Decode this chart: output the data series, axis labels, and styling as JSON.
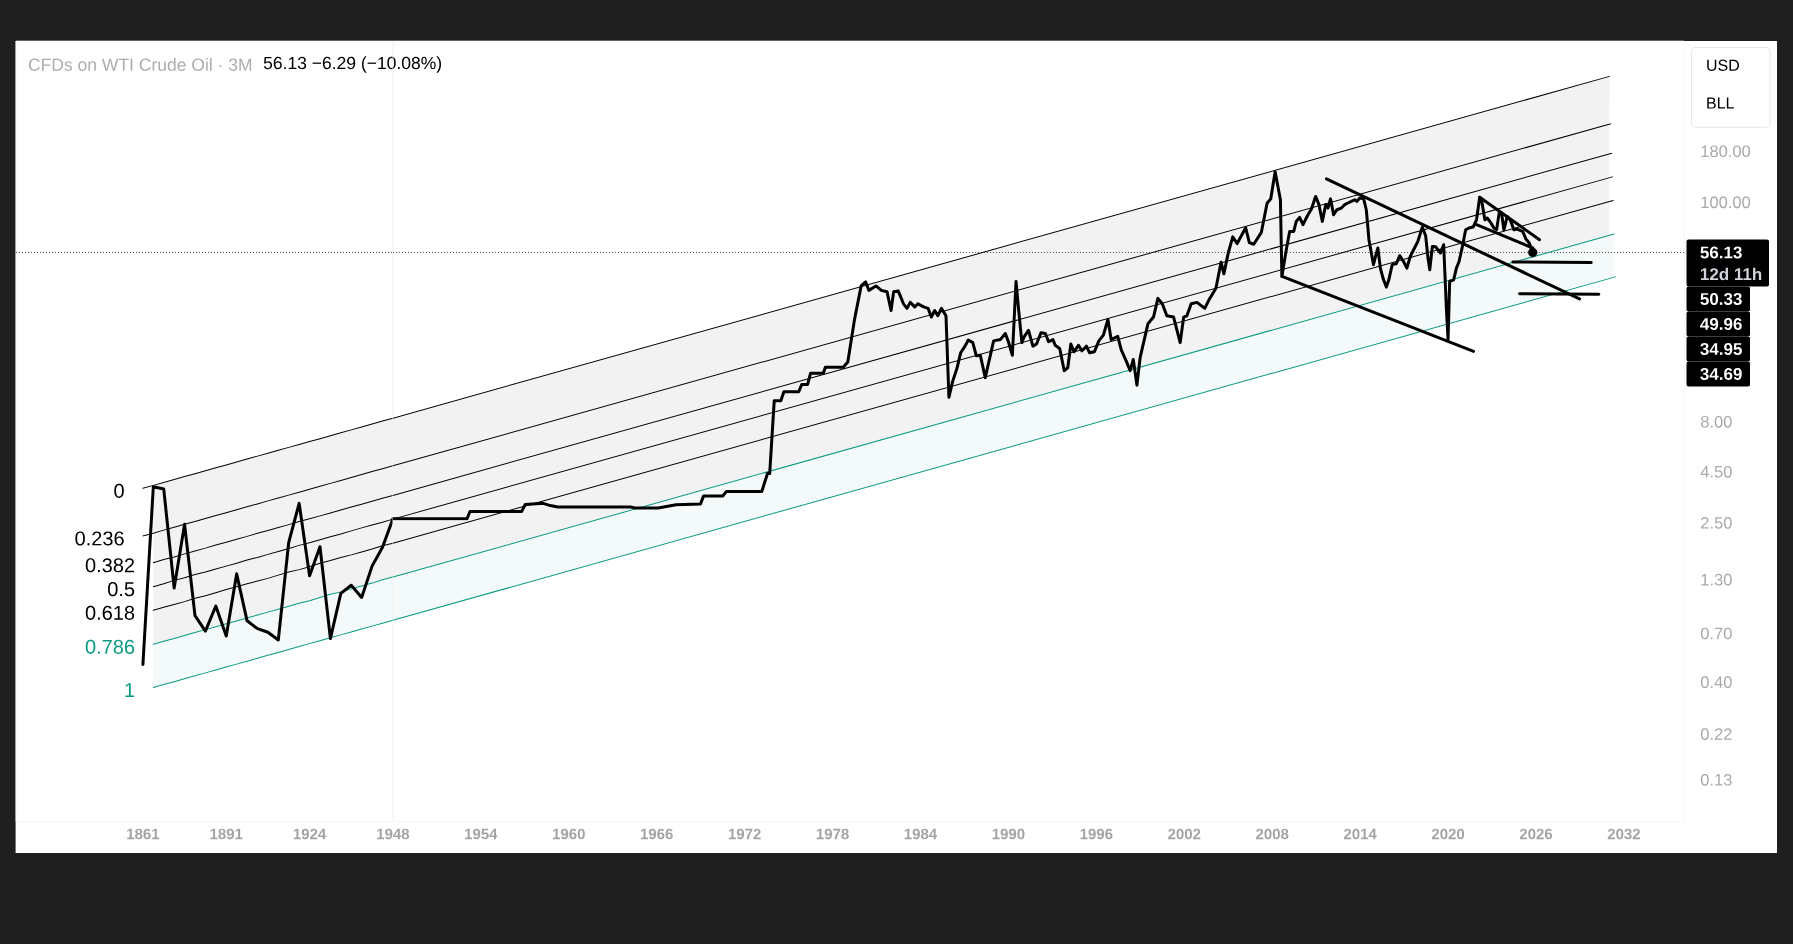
{
  "chart_data": [
    {
      "type": "line",
      "title": "CFDs on WTI Crude Oil · 3M",
      "subtitle": "56.13 −6.29 (−10.08%)",
      "log": true,
      "tick_labels": "x",
      "categories": [
        "1861",
        null,
        null,
        null,
        null,
        null,
        null,
        null,
        "1891",
        null,
        null,
        null,
        null,
        null,
        null,
        null,
        "1924",
        null,
        null,
        null,
        null,
        null,
        null,
        null,
        "1948"
      ],
      "ylim": [
        0.08,
        640
      ],
      "ref_lines": [
        {
          "axis": "y",
          "value": 56.13,
          "line_style": "dotted",
          "color": "#4d4d4d"
        }
      ],
      "series": [
        {
          "name": "0",
          "color": "#000000",
          "values": [
            3.72,
            3.85,
            3.98,
            4.12,
            4.26,
            4.4,
            4.55,
            4.71,
            4.87,
            5.04,
            5.21,
            5.39,
            5.57,
            5.76,
            5.96,
            6.16,
            6.37,
            6.59,
            6.82,
            7.05,
            7.29,
            7.54,
            7.8,
            8.07,
            8.34
          ],
          "upper": [
            null,
            3.85,
            3.98,
            4.12,
            4.26,
            4.4,
            4.55,
            4.71,
            4.87,
            5.04,
            5.21,
            5.39,
            5.57,
            5.76,
            5.96,
            6.16,
            6.37,
            6.59,
            6.82,
            7.05,
            7.29,
            7.54,
            7.8,
            8.07,
            8.34
          ],
          "lower": [
            null,
            0.618,
            0.64,
            0.661,
            0.684,
            0.708,
            0.732,
            0.757,
            0.783,
            0.809,
            0.837,
            0.866,
            0.895,
            0.926,
            0.958,
            0.991,
            1.02,
            1.06,
            1.1,
            1.13,
            1.17,
            1.21,
            1.25,
            1.3,
            1.34
          ]
        },
        {
          "name": "0.236",
          "color": "#000000",
          "values": [
            2.15,
            2.22,
            2.3,
            2.38,
            2.46,
            2.54,
            2.63,
            2.72,
            2.81,
            2.91,
            3.01,
            3.11,
            3.22,
            3.33,
            3.44,
            3.56,
            3.68,
            3.81,
            3.94,
            4.07,
            4.21,
            4.36,
            4.51,
            4.66,
            4.82
          ]
        },
        {
          "name": "0.382",
          "color": "#000000",
          "values": [
            null,
            1.58,
            1.64,
            1.69,
            1.75,
            1.81,
            1.87,
            1.94,
            2.0,
            2.07,
            2.14,
            2.22,
            2.29,
            2.37,
            2.45,
            2.54,
            2.62,
            2.71,
            2.8,
            2.9,
            3.0,
            3.1,
            3.21,
            3.32,
            3.43
          ]
        },
        {
          "name": "0.5",
          "color": "#000000",
          "values": [
            null,
            1.2,
            1.24,
            1.29,
            1.33,
            1.38,
            1.42,
            1.47,
            1.52,
            1.57,
            1.63,
            1.68,
            1.74,
            1.8,
            1.86,
            1.93,
            1.99,
            2.06,
            2.13,
            2.2,
            2.28,
            2.36,
            2.44,
            2.52,
            2.61
          ]
        },
        {
          "name": "0.618",
          "color": "#000000",
          "values": [
            null,
            0.914,
            0.946,
            0.978,
            1.01,
            1.05,
            1.08,
            1.12,
            1.16,
            1.2,
            1.24,
            1.28,
            1.32,
            1.37,
            1.42,
            1.46,
            1.51,
            1.57,
            1.62,
            1.68,
            1.73,
            1.79,
            1.85,
            1.92,
            1.98
          ]
        },
        {
          "name": "0.786",
          "color": "#089981",
          "values": [
            null,
            0.618,
            0.64,
            0.661,
            0.684,
            0.708,
            0.732,
            0.757,
            0.783,
            0.809,
            0.837,
            0.866,
            0.895,
            0.926,
            0.958,
            0.991,
            1.02,
            1.06,
            1.1,
            1.13,
            1.17,
            1.21,
            1.25,
            1.3,
            1.34
          ],
          "upper": [
            null,
            0.618,
            0.64,
            0.661,
            0.684,
            0.708,
            0.732,
            0.757,
            0.783,
            0.809,
            0.837,
            0.866,
            0.895,
            0.926,
            0.958,
            0.991,
            1.02,
            1.06,
            1.1,
            1.13,
            1.17,
            1.21,
            1.25,
            1.3,
            1.34
          ],
          "lower": [
            null,
            0.376,
            0.389,
            0.402,
            0.416,
            0.43,
            0.445,
            0.46,
            0.476,
            0.492,
            0.509,
            0.526,
            0.545,
            0.563,
            0.582,
            0.602,
            0.623,
            0.644,
            0.666,
            0.689,
            0.713,
            0.737,
            0.762,
            0.788,
            0.815
          ]
        },
        {
          "name": "1",
          "color": "#089981",
          "values": [
            null,
            0.376,
            0.389,
            0.402,
            0.416,
            0.43,
            0.445,
            0.46,
            0.476,
            0.492,
            0.509,
            0.526,
            0.545,
            0.563,
            0.582,
            0.602,
            0.623,
            0.644,
            0.666,
            0.689,
            0.713,
            0.737,
            0.762,
            0.788,
            0.815
          ]
        },
        {
          "color": "#000000",
          "values": [
            0.49,
            3.79,
            3.69,
            1.18,
            2.46,
            0.86,
            0.72,
            0.96,
            0.68,
            1.39,
            0.81,
            0.74,
            0.71,
            0.65,
            2.0,
            3.13,
            1.36,
            1.9,
            0.66,
            1.11,
            1.22,
            1.06,
            1.52,
            1.89,
            2.62
          ]
        }
      ]
    },
    {
      "type": "line",
      "log": true,
      "xlim": [
        1948,
        2036.1
      ],
      "xticks": [
        1954,
        1960,
        1966,
        1972,
        1978,
        1984,
        1990,
        1996,
        2002,
        2008,
        2014,
        2020,
        2026,
        2032
      ],
      "ylim": [
        0.08,
        640
      ],
      "yticks": [
        {
          "value": 0.13,
          "label": "0.13"
        },
        {
          "value": 0.22,
          "label": "0.22"
        },
        {
          "value": 0.4,
          "label": "0.40"
        },
        {
          "value": 0.7,
          "label": "0.70"
        },
        {
          "value": 1.3,
          "label": "1.30"
        },
        {
          "value": 2.5,
          "label": "2.50"
        },
        {
          "value": 4.5,
          "label": "4.50"
        },
        {
          "value": 8,
          "label": "8.00"
        },
        {
          "value": 100,
          "label": "100.00"
        },
        {
          "value": 180,
          "label": "180.00"
        }
      ],
      "ref_lines": [
        {
          "axis": "y",
          "value": 56.13,
          "label": "56.13",
          "line_style": "dotted",
          "color": "#4d4d4d"
        }
      ],
      "annotations": [
        "12d 11h",
        "USD",
        "BLL",
        "50.33",
        "49.96",
        "34.95",
        "34.69"
      ],
      "series": [
        {
          "color": "#000000",
          "x": [
            1948,
            2031.01
          ],
          "values": [
            8.34,
            426
          ],
          "upper": [
            8.34,
            426
          ],
          "lower": [
            1.34,
            68.4
          ]
        },
        {
          "color": "#000000",
          "x": [
            1948,
            2031.11
          ],
          "values": [
            4.82,
            247
          ]
        },
        {
          "color": "#000000",
          "x": [
            1948,
            2031.17
          ],
          "values": [
            3.43,
            176
          ]
        },
        {
          "color": "#000000",
          "x": [
            1948,
            2031.22
          ],
          "values": [
            2.61,
            134
          ]
        },
        {
          "color": "#000000",
          "x": [
            1948,
            2031.26
          ],
          "values": [
            1.98,
            102
          ]
        },
        {
          "color": "#089981",
          "x": [
            1948,
            2031.33
          ],
          "values": [
            1.34,
            69.4
          ],
          "upper": [
            1.34,
            69.4
          ],
          "lower": [
            0.815,
            42.2
          ]
        },
        {
          "color": "#089981",
          "x": [
            1948,
            2031.42
          ],
          "values": [
            0.815,
            42.4
          ]
        },
        {
          "color": "#000000",
          "x": [
            1948,
            1953.06,
            1953.26,
            1956.78,
            1957.03,
            1958.25,
            1958.74,
            1959.24,
            1964.23,
            1964.48,
            1966.1,
            1967.32,
            1968.99,
            1969.2,
            1970.52,
            1970.76,
            1973.17,
            1973.56,
            1973.71,
            1974.02,
            1974.47,
            1974.68,
            1975.69,
            1975.9,
            1976.3,
            1976.5,
            1977.37,
            1977.51,
            1978.73,
            1979.04,
            1979.5,
            1979.95,
            1980.26,
            1980.48,
            1980.96,
            1981.33,
            1981.72,
            1981.99,
            1982.17,
            1982.48,
            1982.84,
            1983.08,
            1983.3,
            1983.61,
            1983.82,
            1984.22,
            1984.52,
            1984.74,
            1984.97,
            1985.18,
            1985.43,
            1985.74,
            1985.94,
            1986.19,
            1986.49,
            1986.74,
            1987.04,
            1987.26,
            1987.57,
            1987.81,
            1988.08,
            1988.42,
            1988.99,
            1989.45,
            1989.79,
            1990.0,
            1990.27,
            1990.52,
            1990.7,
            1990.92,
            1991.06,
            1991.37,
            1991.67,
            1991.92,
            1992.22,
            1992.52,
            1992.74,
            1993.04,
            1993.19,
            1993.5,
            1993.81,
            1994.05,
            1994.26,
            1994.47,
            1994.78,
            1995.02,
            1995.32,
            1995.54,
            1995.87,
            1996.17,
            1996.48,
            1996.79,
            1997.01,
            1997.46,
            1997.7,
            1998.07,
            1998.31,
            1998.52,
            1998.77,
            1998.99,
            1999.52,
            1999.9,
            2000.2,
            2000.5,
            2000.81,
            2001.27,
            2001.72,
            2001.96,
            2002.18,
            2002.47,
            2002.87,
            2003.4,
            2003.7,
            2004.16,
            2004.51,
            2004.7,
            2005.01,
            2005.31,
            2005.61,
            2006.19,
            2006.44,
            2006.74,
            2007.26,
            2007.65,
            2007.9,
            2008.2,
            2008.56,
            2008.66,
            2008.96,
            2009.19,
            2009.47,
            2009.64,
            2009.87,
            2010.1,
            2010.44,
            2010.68,
            2010.96,
            2011.19,
            2011.42,
            2011.65,
            2011.8,
            2011.98,
            2012.19,
            2012.41,
            2012.72,
            2012.94,
            2013.17,
            2013.4,
            2013.63,
            2013.79,
            2013.96,
            2014.24,
            2014.42,
            2014.6,
            2014.91,
            2015.05,
            2015.21,
            2015.38,
            2015.56,
            2015.79,
            2015.96,
            2016.19,
            2016.47,
            2016.7,
            2016.96,
            2017.19,
            2017.42,
            2017.65,
            2017.94,
            2018.24,
            2018.47,
            2018.63,
            2018.75,
            2018.93,
            2019.15,
            2019.31,
            2019.48,
            2019.7,
            2019.89,
            2020.0,
            2020.11,
            2020.38,
            2020.57,
            2020.75,
            2020.98,
            2021.2,
            2021.43,
            2021.71,
            2021.94,
            2022.16,
            2022.32,
            2022.51,
            2022.67,
            2022.9,
            2023.13,
            2023.31,
            2023.49,
            2023.65,
            2023.81,
            2024.04,
            2024.26,
            2024.49,
            2024.68,
            2024.91,
            2025.09,
            2025.31,
            2025.54,
            2025.78
          ],
          "values": [
            2.62,
            2.62,
            2.85,
            2.85,
            3.09,
            3.13,
            3.05,
            3.0,
            3.0,
            2.97,
            2.97,
            3.08,
            3.11,
            3.41,
            3.41,
            3.59,
            3.59,
            4.41,
            4.41,
            10.2,
            10.2,
            11.3,
            11.3,
            12.3,
            12.3,
            14.0,
            14.0,
            15.0,
            15.0,
            15.9,
            26.0,
            38.2,
            40.0,
            36.3,
            38.2,
            36.3,
            35.7,
            28.8,
            35.7,
            36.1,
            31.1,
            29.5,
            31.6,
            30.0,
            31.1,
            30.0,
            29.5,
            26.7,
            28.8,
            27.1,
            29.5,
            27.1,
            10.6,
            12.7,
            14.8,
            17.7,
            19.1,
            20.5,
            19.9,
            17.1,
            17.2,
            13.3,
            20.3,
            20.6,
            22.1,
            20.1,
            17.2,
            40.2,
            28.8,
            19.9,
            21.2,
            22.9,
            19.1,
            19.6,
            22.3,
            22.1,
            20.1,
            20.6,
            19.3,
            18.6,
            14.4,
            14.9,
            19.6,
            17.9,
            19.3,
            18.1,
            19.1,
            17.7,
            17.9,
            20.3,
            21.7,
            26.0,
            20.6,
            21.4,
            18.3,
            15.9,
            14.4,
            16.4,
            12.2,
            16.8,
            24.7,
            26.7,
            33.1,
            31.1,
            27.1,
            26.7,
            19.9,
            26.7,
            27.1,
            31.1,
            31.6,
            29.5,
            32.7,
            37.2,
            50.2,
            43.9,
            56.2,
            67.2,
            62.2,
            74.6,
            62.9,
            61.7,
            70.8,
            98.9,
            104,
            142,
            103,
            42.6,
            57.9,
            71.5,
            71.5,
            80.3,
            84.0,
            77.3,
            86.7,
            92.6,
            107,
            97.3,
            80.3,
            97.3,
            93.6,
            104,
            86.7,
            91.8,
            93.6,
            97.3,
            99.2,
            101,
            103,
            101,
            105,
            104,
            91.8,
            65.0,
            48.8,
            53.6,
            59.1,
            46.9,
            41.8,
            37.7,
            41.0,
            48.8,
            49.3,
            54.1,
            50.6,
            46.9,
            53.6,
            57.9,
            63.8,
            75.2,
            68.1,
            52.7,
            46.0,
            60.2,
            60.0,
            57.9,
            55.8,
            61.4,
            29.0,
            20.6,
            40.2,
            41.0,
            46.9,
            50.6,
            60.2,
            72.9,
            74.4,
            75.2,
            81.8,
            106,
            99.2,
            81.8,
            83.5,
            79.4,
            74.4,
            72.9,
            88.4,
            88.4,
            72.9,
            85.0,
            81.2,
            72.9,
            73.6,
            72.4,
            71.5,
            65.6,
            62.6,
            56.13
          ]
        },
        {
          "color": "#000000",
          "x": [
            2011.7,
            2028.97
          ],
          "values": [
            131,
            32.9
          ]
        },
        {
          "color": "#000000",
          "x": [
            2008.67,
            2021.74
          ],
          "values": [
            42.6,
            18.0
          ]
        },
        {
          "color": "#000000",
          "x": [
            2022.16,
            2026.24
          ],
          "values": [
            106,
            65.0
          ]
        },
        {
          "color": "#000000",
          "x": [
            2021.94,
            2025.78
          ],
          "values": [
            77.3,
            59.1
          ]
        },
        {
          "color": "#000000",
          "x": [
            2024.42,
            2029.77
          ],
          "values": [
            50.33,
            49.96
          ]
        },
        {
          "color": "#000000",
          "x": [
            2024.88,
            2030.29
          ],
          "values": [
            34.95,
            34.69
          ]
        },
        {
          "type": "scatter",
          "color": "#000000",
          "x": [
            2025.78
          ],
          "values": [
            56.13
          ]
        }
      ]
    }
  ]
}
